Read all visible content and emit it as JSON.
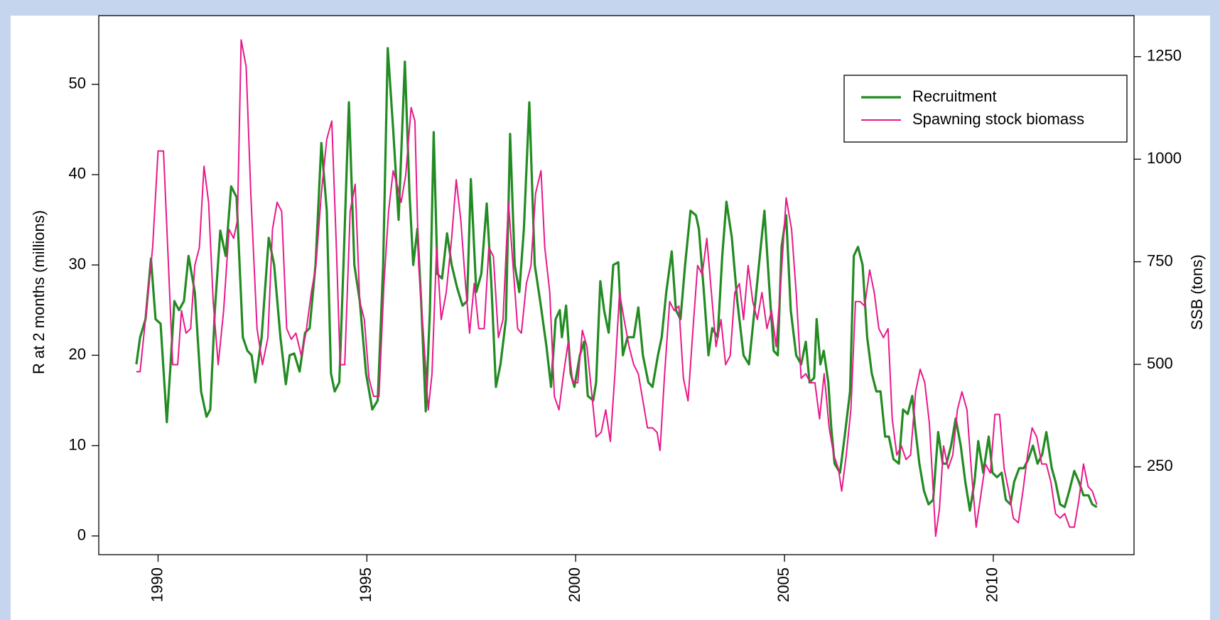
{
  "chart_data": {
    "type": "line",
    "ylabel": "R at 2 months (millions)",
    "y2label": "SSB (tons)",
    "xlim": [
      1988.58,
      2013.37
    ],
    "xticks": [
      1990,
      1995,
      2000,
      2005,
      2010
    ],
    "ylim": [
      -2.07,
      57.6
    ],
    "yticks": [
      0,
      10,
      20,
      30,
      40,
      50
    ],
    "y2lim": [
      36,
      1350
    ],
    "y2ticks": [
      250,
      500,
      750,
      1000,
      1250
    ],
    "legend": "top-right",
    "series": [
      {
        "name": "Recruitment",
        "color": "#228b22",
        "x": [
          1989.48,
          1989.57,
          1989.7,
          1989.83,
          1989.94,
          1990.06,
          1990.21,
          1990.3,
          1990.39,
          1990.5,
          1990.62,
          1990.73,
          1990.88,
          1991.03,
          1991.16,
          1991.25,
          1991.36,
          1991.49,
          1991.62,
          1991.75,
          1991.88,
          1992.03,
          1992.14,
          1992.24,
          1992.33,
          1992.48,
          1992.65,
          1992.78,
          1992.93,
          1993.06,
          1993.15,
          1993.26,
          1993.39,
          1993.52,
          1993.63,
          1993.77,
          1993.91,
          1994.04,
          1994.14,
          1994.23,
          1994.34,
          1994.44,
          1994.57,
          1994.7,
          1994.83,
          1994.98,
          1995.13,
          1995.26,
          1995.39,
          1995.5,
          1995.63,
          1995.76,
          1995.91,
          1996.02,
          1996.11,
          1996.21,
          1996.3,
          1996.41,
          1996.51,
          1996.6,
          1996.69,
          1996.8,
          1996.92,
          1997.03,
          1997.16,
          1997.29,
          1997.4,
          1997.49,
          1997.62,
          1997.74,
          1997.87,
          1997.98,
          1998.09,
          1998.2,
          1998.33,
          1998.43,
          1998.54,
          1998.65,
          1998.76,
          1998.89,
          1999.02,
          1999.15,
          1999.3,
          1999.41,
          1999.52,
          1999.62,
          1999.67,
          1999.77,
          1999.88,
          1999.97,
          2000.1,
          2000.2,
          2000.29,
          2000.42,
          2000.49,
          2000.59,
          2000.68,
          2000.79,
          2000.9,
          2001.02,
          2001.13,
          2001.24,
          2001.39,
          2001.5,
          2001.61,
          2001.74,
          2001.84,
          2001.97,
          2002.06,
          2002.17,
          2002.3,
          2002.4,
          2002.51,
          2002.62,
          2002.75,
          2002.88,
          2002.95,
          2003.07,
          2003.18,
          2003.27,
          2003.4,
          2003.51,
          2003.61,
          2003.74,
          2003.87,
          2004.02,
          2004.15,
          2004.26,
          2004.41,
          2004.52,
          2004.63,
          2004.74,
          2004.84,
          2004.93,
          2005.04,
          2005.15,
          2005.28,
          2005.4,
          2005.51,
          2005.6,
          2005.71,
          2005.77,
          2005.86,
          2005.94,
          2006.05,
          2006.12,
          2006.2,
          2006.33,
          2006.44,
          2006.57,
          2006.66,
          2006.76,
          2006.87,
          2006.98,
          2007.09,
          2007.2,
          2007.3,
          2007.41,
          2007.5,
          2007.61,
          2007.74,
          2007.84,
          2007.95,
          2008.06,
          2008.13,
          2008.23,
          2008.34,
          2008.45,
          2008.56,
          2008.68,
          2008.79,
          2008.88,
          2008.99,
          2009.1,
          2009.22,
          2009.33,
          2009.44,
          2009.55,
          2009.64,
          2009.76,
          2009.89,
          2009.98,
          2010.09,
          2010.2,
          2010.3,
          2010.41,
          2010.5,
          2010.62,
          2010.73,
          2010.84,
          2010.95,
          2011.06,
          2011.17,
          2011.27,
          2011.4,
          2011.49,
          2011.6,
          2011.71,
          2011.82,
          2011.94,
          2012.05,
          2012.16,
          2012.28,
          2012.37,
          2012.48
        ],
        "values": [
          19,
          22,
          24,
          30.7,
          24,
          23.5,
          12.6,
          19,
          26,
          25,
          26,
          31,
          27,
          16,
          13.2,
          14,
          25,
          33.8,
          31,
          38.7,
          37.5,
          22,
          20.5,
          20,
          17,
          22,
          33,
          30,
          22,
          16.8,
          20,
          20.2,
          18.2,
          22.5,
          23,
          30,
          43.5,
          36,
          18,
          16,
          17,
          30,
          48,
          30,
          26,
          18,
          14,
          15,
          30,
          54,
          45,
          35,
          52.5,
          38,
          30,
          34,
          26,
          13.8,
          25,
          44.7,
          29,
          28.5,
          33.5,
          30,
          27.5,
          25.5,
          26,
          39.5,
          27,
          29,
          36.8,
          28,
          16.5,
          19,
          24,
          44.5,
          30,
          27,
          34,
          48,
          30,
          26,
          21,
          16.5,
          24,
          25,
          22,
          25.5,
          18,
          16.5,
          20,
          21.5,
          15.5,
          15,
          17,
          28.2,
          25,
          22.5,
          30,
          30.3,
          20,
          22,
          22,
          25.3,
          20,
          17,
          16.5,
          20,
          22,
          27,
          31.5,
          25,
          24,
          30,
          36,
          35.5,
          34,
          27,
          20,
          23,
          22,
          31,
          37,
          33,
          26,
          20,
          19,
          24,
          31,
          36,
          28,
          20.5,
          20,
          32,
          35.5,
          25,
          20,
          19,
          21.5,
          17,
          17.5,
          24,
          19,
          20.5,
          17,
          12,
          8,
          7,
          11,
          16,
          31,
          32,
          30,
          22,
          18,
          16,
          16,
          11,
          11,
          8.5,
          8,
          14,
          13.5,
          15.5,
          12,
          8,
          5,
          3.5,
          4,
          11.5,
          8,
          8,
          10,
          13,
          10,
          6,
          2.8,
          6,
          10.5,
          7,
          11,
          7,
          6.5,
          7,
          4,
          3.5,
          6,
          7.5,
          7.5,
          8.5,
          10,
          8,
          9,
          11.5,
          7.5,
          6,
          3.5,
          3.2,
          5,
          7.2,
          6,
          4.5,
          4.5,
          3.5,
          3.2
        ]
      },
      {
        "name": "Spawning stock biomass",
        "color": "#e8198b",
        "axis": "y2",
        "x": [
          1989.48,
          1989.57,
          1989.72,
          1989.87,
          1990.0,
          1990.13,
          1990.24,
          1990.35,
          1990.47,
          1990.56,
          1990.67,
          1990.78,
          1990.88,
          1990.99,
          1991.1,
          1991.21,
          1991.32,
          1991.44,
          1991.57,
          1991.7,
          1991.81,
          1991.9,
          1991.99,
          1992.11,
          1992.22,
          1992.37,
          1992.5,
          1992.63,
          1992.74,
          1992.85,
          1992.96,
          1993.08,
          1993.19,
          1993.3,
          1993.43,
          1993.54,
          1993.67,
          1993.78,
          1993.91,
          1994.04,
          1994.16,
          1994.27,
          1994.36,
          1994.47,
          1994.6,
          1994.72,
          1994.83,
          1994.94,
          1995.05,
          1995.16,
          1995.29,
          1995.41,
          1995.52,
          1995.63,
          1995.72,
          1995.82,
          1995.93,
          1996.06,
          1996.15,
          1996.24,
          1996.36,
          1996.47,
          1996.56,
          1996.67,
          1996.78,
          1996.9,
          1997.03,
          1997.14,
          1997.25,
          1997.36,
          1997.46,
          1997.57,
          1997.68,
          1997.81,
          1997.92,
          1998.03,
          1998.15,
          1998.26,
          1998.39,
          1998.5,
          1998.61,
          1998.7,
          1998.82,
          1998.93,
          1999.04,
          1999.17,
          1999.26,
          1999.38,
          1999.49,
          1999.6,
          1999.71,
          1999.82,
          1999.93,
          2000.05,
          2000.16,
          2000.27,
          2000.38,
          2000.49,
          2000.61,
          2000.72,
          2000.83,
          2000.94,
          2001.05,
          2001.16,
          2001.28,
          2001.39,
          2001.5,
          2001.61,
          2001.72,
          2001.84,
          2001.95,
          2002.02,
          2002.13,
          2002.25,
          2002.36,
          2002.47,
          2002.58,
          2002.69,
          2002.81,
          2002.92,
          2003.03,
          2003.14,
          2003.25,
          2003.36,
          2003.48,
          2003.59,
          2003.7,
          2003.81,
          2003.92,
          2004.02,
          2004.13,
          2004.24,
          2004.35,
          2004.46,
          2004.58,
          2004.69,
          2004.8,
          2004.91,
          2005.04,
          2005.17,
          2005.28,
          2005.4,
          2005.51,
          2005.62,
          2005.73,
          2005.84,
          2005.95,
          2006.07,
          2006.18,
          2006.29,
          2006.37,
          2006.48,
          2006.59,
          2006.7,
          2006.81,
          2006.92,
          2007.04,
          2007.15,
          2007.26,
          2007.37,
          2007.48,
          2007.58,
          2007.69,
          2007.8,
          2007.91,
          2008.02,
          2008.14,
          2008.25,
          2008.36,
          2008.47,
          2008.55,
          2008.62,
          2008.71,
          2008.81,
          2008.92,
          2009.03,
          2009.14,
          2009.25,
          2009.37,
          2009.48,
          2009.59,
          2009.7,
          2009.81,
          2009.93,
          2010.04,
          2010.15,
          2010.26,
          2010.37,
          2010.48,
          2010.6,
          2010.71,
          2010.82,
          2010.93,
          2011.04,
          2011.16,
          2011.27,
          2011.38,
          2011.49,
          2011.6,
          2011.71,
          2011.83,
          2011.94,
          2012.05,
          2012.16,
          2012.27,
          2012.37,
          2012.48
        ],
        "values": [
          482,
          482,
          631,
          785,
          1020,
          1020,
          763,
          499,
          499,
          631,
          576,
          587,
          741,
          785,
          983,
          895,
          653,
          499,
          631,
          829,
          807,
          851,
          1291,
          1225,
          917,
          587,
          499,
          565,
          829,
          895,
          873,
          587,
          561,
          576,
          521,
          576,
          675,
          741,
          917,
          1049,
          1093,
          785,
          499,
          499,
          873,
          939,
          653,
          609,
          466,
          422,
          422,
          697,
          873,
          972,
          939,
          895,
          961,
          1126,
          1093,
          741,
          565,
          389,
          477,
          785,
          609,
          675,
          807,
          950,
          851,
          697,
          576,
          697,
          587,
          587,
          785,
          763,
          565,
          609,
          895,
          741,
          587,
          576,
          697,
          741,
          917,
          972,
          785,
          675,
          422,
          389,
          477,
          554,
          455,
          455,
          583,
          543,
          433,
          323,
          334,
          389,
          312,
          477,
          675,
          609,
          543,
          499,
          477,
          411,
          345,
          345,
          334,
          290,
          477,
          653,
          631,
          642,
          466,
          411,
          587,
          741,
          719,
          807,
          675,
          543,
          609,
          499,
          521,
          675,
          697,
          609,
          741,
          653,
          609,
          675,
          587,
          631,
          543,
          697,
          906,
          829,
          675,
          466,
          477,
          455,
          455,
          367,
          477,
          345,
          279,
          246,
          191,
          279,
          389,
          653,
          653,
          642,
          730,
          675,
          587,
          565,
          587,
          367,
          279,
          301,
          268,
          279,
          433,
          488,
          455,
          356,
          213,
          81,
          147,
          301,
          246,
          279,
          389,
          433,
          389,
          235,
          103,
          180,
          257,
          235,
          378,
          378,
          246,
          191,
          125,
          114,
          191,
          279,
          345,
          323,
          257,
          257,
          213,
          136,
          125,
          136,
          103,
          103,
          169,
          257,
          202,
          191,
          158
        ]
      }
    ]
  }
}
